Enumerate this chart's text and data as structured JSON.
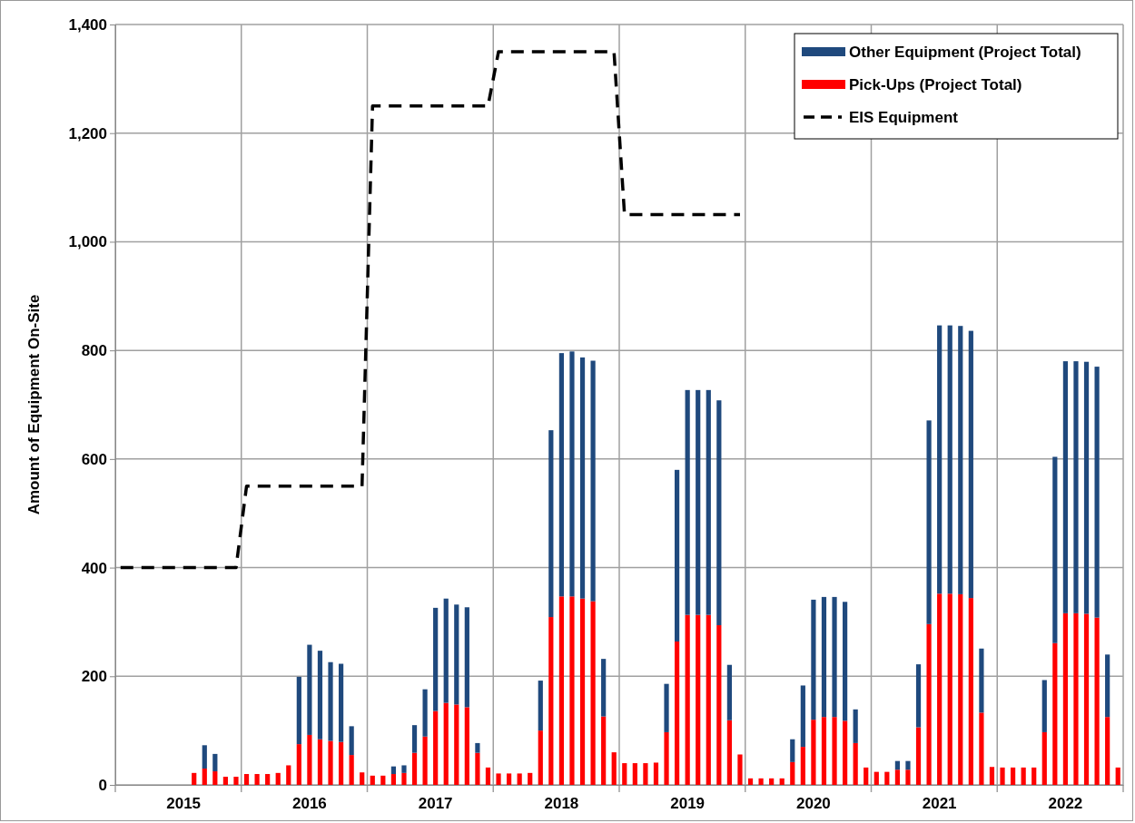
{
  "chart_data": {
    "type": "bar",
    "stacked": true,
    "ylabel": "Amount of Equipment On-Site",
    "categories": [
      null,
      null,
      null,
      null,
      null,
      null,
      "2015",
      null,
      null,
      null,
      null,
      null,
      null,
      null,
      null,
      null,
      null,
      null,
      "2016",
      null,
      null,
      null,
      null,
      null,
      null,
      null,
      null,
      null,
      null,
      null,
      "2017",
      null,
      null,
      null,
      null,
      null,
      null,
      null,
      null,
      null,
      null,
      null,
      "2018",
      null,
      null,
      null,
      null,
      null,
      null,
      null,
      null,
      null,
      null,
      null,
      "2019",
      null,
      null,
      null,
      null,
      null,
      null,
      null,
      null,
      null,
      null,
      null,
      "2020",
      null,
      null,
      null,
      null,
      null,
      null,
      null,
      null,
      null,
      null,
      null,
      "2021",
      null,
      null,
      null,
      null,
      null,
      null,
      null,
      null,
      null,
      null,
      null,
      "2022",
      null,
      null,
      null,
      null,
      null
    ],
    "series": [
      {
        "name": "Pick-Ups (Project Total)",
        "color": "#ff0000",
        "values": [
          null,
          null,
          null,
          null,
          null,
          null,
          null,
          22,
          30,
          25,
          15,
          15,
          20,
          20,
          20,
          22,
          36,
          75,
          92,
          84,
          81,
          79,
          55,
          23,
          17,
          17,
          20,
          22,
          59,
          89,
          136,
          151,
          148,
          143,
          59,
          32,
          21,
          21,
          21,
          22,
          100,
          309,
          347,
          347,
          343,
          338,
          126,
          60,
          40,
          40,
          40,
          41,
          97,
          264,
          313,
          313,
          313,
          294,
          119,
          56,
          12,
          12,
          12,
          12,
          42,
          70,
          120,
          125,
          125,
          118,
          77,
          32,
          24,
          24,
          28,
          28,
          106,
          296,
          352,
          352,
          351,
          344,
          133,
          33,
          32,
          32,
          32,
          32,
          97,
          261,
          316,
          316,
          315,
          308,
          125,
          32
        ]
      },
      {
        "name": "Other Equipment (Project Total)",
        "color": "#1f497d",
        "values": [
          null,
          null,
          null,
          null,
          null,
          null,
          null,
          null,
          43,
          32,
          null,
          null,
          null,
          null,
          null,
          null,
          null,
          124,
          166,
          163,
          145,
          144,
          53,
          null,
          null,
          null,
          14,
          14,
          51,
          87,
          190,
          192,
          184,
          184,
          18,
          null,
          null,
          null,
          null,
          null,
          92,
          344,
          448,
          451,
          444,
          443,
          106,
          null,
          null,
          null,
          null,
          null,
          89,
          316,
          414,
          414,
          414,
          414,
          102,
          null,
          null,
          null,
          null,
          null,
          42,
          113,
          221,
          221,
          221,
          219,
          62,
          null,
          null,
          null,
          16,
          16,
          116,
          375,
          494,
          494,
          494,
          492,
          118,
          null,
          null,
          null,
          null,
          null,
          96,
          343,
          464,
          464,
          464,
          462,
          115,
          null
        ]
      },
      {
        "name": "EIS Equipment",
        "type": "line",
        "line_style": "dashed",
        "color": "#000000",
        "values": [
          400,
          400,
          400,
          400,
          400,
          400,
          400,
          400,
          400,
          400,
          400,
          400,
          550,
          550,
          550,
          550,
          550,
          550,
          550,
          550,
          550,
          550,
          550,
          550,
          1250,
          1250,
          1250,
          1250,
          1250,
          1250,
          1250,
          1250,
          1250,
          1250,
          1250,
          1250,
          1350,
          1350,
          1350,
          1350,
          1350,
          1350,
          1350,
          1350,
          1350,
          1350,
          1350,
          1350,
          1050,
          1050,
          1050,
          1050,
          1050,
          1050,
          1050,
          1050,
          1050,
          1050,
          1050,
          1050,
          null,
          null,
          null,
          null,
          null,
          null,
          null,
          null,
          null,
          null,
          null,
          null,
          null,
          null,
          null,
          null,
          null,
          null,
          null,
          null,
          null,
          null,
          null,
          null,
          null,
          null,
          null,
          null,
          null,
          null,
          null,
          null,
          null,
          null,
          null,
          null
        ]
      }
    ],
    "ylim": [
      0,
      1400
    ],
    "yticks": [
      0,
      200,
      400,
      600,
      800,
      {
        "value": 1000,
        "label": "1,000"
      },
      {
        "value": 1200,
        "label": "1,200"
      },
      {
        "value": 1400,
        "label": "1,400"
      }
    ],
    "grid": true,
    "legend": "top right"
  }
}
